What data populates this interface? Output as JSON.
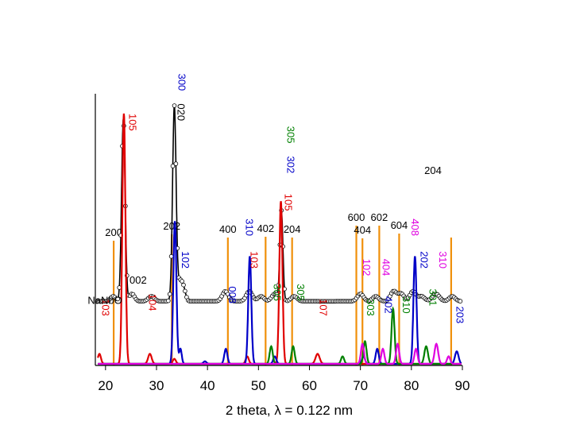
{
  "chart_data": {
    "type": "line",
    "title": "",
    "xlabel": "2 theta, λ = 0.122 nm",
    "ylabel": "",
    "xlim": [
      18,
      90
    ],
    "ylim": [
      0,
      100
    ],
    "x_ticks": [
      20,
      30,
      40,
      50,
      60,
      70,
      80,
      90
    ],
    "x_tick_labels": [
      "20",
      "30",
      "40",
      "50",
      "60",
      "70",
      "80",
      "90"
    ],
    "legend": "none",
    "grid": false,
    "colors": {
      "experimental": "#000000",
      "red": "#e00000",
      "blue": "#0000c8",
      "green": "#008000",
      "magenta": "#e000e0",
      "orange": "#f0900a"
    },
    "series": [
      {
        "name": "experimental",
        "color": "#000000",
        "marker": "open-circle",
        "baseline": 25,
        "peaks": [
          {
            "x": 23.5,
            "h": 73,
            "w": 0.35
          },
          {
            "x": 33.5,
            "h": 78,
            "w": 0.35
          },
          {
            "x": 34.6,
            "h": 7,
            "w": 0.4
          },
          {
            "x": 35.3,
            "h": 5,
            "w": 0.4
          },
          {
            "x": 21.5,
            "h": 2,
            "w": 0.5
          },
          {
            "x": 25.2,
            "h": 3,
            "w": 0.5
          },
          {
            "x": 29.0,
            "h": 2,
            "w": 0.6
          },
          {
            "x": 43.5,
            "h": 4,
            "w": 0.6
          },
          {
            "x": 48.2,
            "h": 4,
            "w": 0.6
          },
          {
            "x": 50.5,
            "h": 2,
            "w": 0.6
          },
          {
            "x": 53.2,
            "h": 3,
            "w": 0.6
          },
          {
            "x": 54.5,
            "h": 36,
            "w": 0.3
          },
          {
            "x": 57.0,
            "h": 2,
            "w": 0.6
          },
          {
            "x": 70.0,
            "h": 3,
            "w": 0.6
          },
          {
            "x": 73.0,
            "h": 2,
            "w": 0.6
          },
          {
            "x": 76.5,
            "h": 4,
            "w": 0.6
          },
          {
            "x": 78.0,
            "h": 3,
            "w": 0.6
          },
          {
            "x": 80.3,
            "h": 4,
            "w": 0.6
          },
          {
            "x": 82.0,
            "h": 2,
            "w": 0.6
          },
          {
            "x": 84.8,
            "h": 3,
            "w": 0.7
          },
          {
            "x": 88.0,
            "h": 2,
            "w": 0.6
          }
        ]
      },
      {
        "name": "red",
        "color": "#e00000",
        "baseline": 0,
        "peaks": [
          {
            "x": 18.8,
            "h": 4,
            "w": 0.3
          },
          {
            "x": 23.6,
            "h": 100,
            "w": 0.3
          },
          {
            "x": 28.7,
            "h": 4,
            "w": 0.35
          },
          {
            "x": 33.5,
            "h": 2,
            "w": 0.3
          },
          {
            "x": 47.8,
            "h": 3,
            "w": 0.3
          },
          {
            "x": 54.4,
            "h": 65,
            "w": 0.3
          },
          {
            "x": 61.6,
            "h": 4,
            "w": 0.4
          }
        ]
      },
      {
        "name": "blue",
        "color": "#0000c8",
        "baseline": 0,
        "peaks": [
          {
            "x": 33.6,
            "h": 57,
            "w": 0.3
          },
          {
            "x": 34.7,
            "h": 6,
            "w": 0.25
          },
          {
            "x": 39.5,
            "h": 1,
            "w": 0.3
          },
          {
            "x": 43.6,
            "h": 6,
            "w": 0.3
          },
          {
            "x": 48.3,
            "h": 43,
            "w": 0.3
          },
          {
            "x": 53.2,
            "h": 3,
            "w": 0.3
          },
          {
            "x": 70.6,
            "h": 3,
            "w": 0.3
          },
          {
            "x": 73.3,
            "h": 6,
            "w": 0.3
          },
          {
            "x": 80.7,
            "h": 43,
            "w": 0.3
          },
          {
            "x": 88.9,
            "h": 5,
            "w": 0.35
          }
        ]
      },
      {
        "name": "green",
        "color": "#008000",
        "baseline": 0,
        "peaks": [
          {
            "x": 52.5,
            "h": 7,
            "w": 0.3
          },
          {
            "x": 56.8,
            "h": 7,
            "w": 0.3
          },
          {
            "x": 66.5,
            "h": 3,
            "w": 0.3
          },
          {
            "x": 70.9,
            "h": 9,
            "w": 0.3
          },
          {
            "x": 76.4,
            "h": 22,
            "w": 0.3
          },
          {
            "x": 82.9,
            "h": 7,
            "w": 0.35
          }
        ]
      },
      {
        "name": "magenta",
        "color": "#e000e0",
        "baseline": 0,
        "peaks": [
          {
            "x": 70.4,
            "h": 8,
            "w": 0.3
          },
          {
            "x": 74.4,
            "h": 6,
            "w": 0.3
          },
          {
            "x": 77.3,
            "h": 8,
            "w": 0.3
          },
          {
            "x": 80.9,
            "h": 6,
            "w": 0.3
          },
          {
            "x": 84.9,
            "h": 8,
            "w": 0.35
          },
          {
            "x": 87.3,
            "h": 3,
            "w": 0.3
          }
        ]
      }
    ],
    "reference_lines": {
      "color": "#f0900a",
      "lines": [
        {
          "x": 21.6,
          "label": "200"
        },
        {
          "x": 33.0,
          "label": "202"
        },
        {
          "x": 44.0,
          "label": "400"
        },
        {
          "x": 51.4,
          "label": "402"
        },
        {
          "x": 56.6,
          "label": "204"
        },
        {
          "x": 69.2,
          "label": "600"
        },
        {
          "x": 70.4,
          "label": "404"
        },
        {
          "x": 73.7,
          "label": "602"
        },
        {
          "x": 77.6,
          "label": "604"
        },
        {
          "x": 87.8,
          "label": "204"
        }
      ]
    },
    "annotations": [
      {
        "text": "002",
        "x": 24.7,
        "y": 32,
        "color": "#000000",
        "rotate": 0
      },
      {
        "text": "300",
        "x": 34.3,
        "y": 116,
        "color": "#0000c8",
        "rotate": 90
      },
      {
        "text": "020",
        "x": 34.1,
        "y": 104,
        "color": "#000000",
        "rotate": 90
      },
      {
        "text": "105",
        "x": 24.6,
        "y": 100,
        "color": "#e00000",
        "rotate": 90
      },
      {
        "text": "305",
        "x": 55.6,
        "y": 95,
        "color": "#008000",
        "rotate": 90
      },
      {
        "text": "302",
        "x": 55.6,
        "y": 83,
        "color": "#0000c8",
        "rotate": 90
      },
      {
        "text": "105",
        "x": 55.2,
        "y": 68,
        "color": "#e00000",
        "rotate": 90
      },
      {
        "text": "310",
        "x": 47.5,
        "y": 58,
        "color": "#0000c8",
        "rotate": 90
      },
      {
        "text": "103",
        "x": 48.5,
        "y": 45,
        "color": "#e00000",
        "rotate": 90
      },
      {
        "text": "102",
        "x": 35.0,
        "y": 45,
        "color": "#0000c8",
        "rotate": 90
      },
      {
        "text": "104",
        "x": 28.5,
        "y": 28,
        "color": "#e00000",
        "rotate": 90
      },
      {
        "text": "103",
        "x": 19.3,
        "y": 26,
        "color": "#e00000",
        "rotate": 90
      },
      {
        "text": "008",
        "x": 44.2,
        "y": 31,
        "color": "#0000c8",
        "rotate": 90
      },
      {
        "text": "305",
        "x": 53.0,
        "y": 32,
        "color": "#008000",
        "rotate": 90
      },
      {
        "text": "305",
        "x": 57.6,
        "y": 32,
        "color": "#008000",
        "rotate": 90
      },
      {
        "text": "107",
        "x": 62.0,
        "y": 26,
        "color": "#e00000",
        "rotate": 90
      },
      {
        "text": "408",
        "x": 80.0,
        "y": 58,
        "color": "#e000e0",
        "rotate": 90
      },
      {
        "text": "102",
        "x": 70.5,
        "y": 42,
        "color": "#e000e0",
        "rotate": 90
      },
      {
        "text": "404",
        "x": 74.3,
        "y": 42,
        "color": "#e000e0",
        "rotate": 90
      },
      {
        "text": "202",
        "x": 81.8,
        "y": 45,
        "color": "#0000c8",
        "rotate": 90
      },
      {
        "text": "310",
        "x": 85.5,
        "y": 45,
        "color": "#e000e0",
        "rotate": 90
      },
      {
        "text": "303",
        "x": 71.3,
        "y": 26,
        "color": "#008000",
        "rotate": 90
      },
      {
        "text": "402",
        "x": 74.8,
        "y": 27,
        "color": "#0000c8",
        "rotate": 90
      },
      {
        "text": "310",
        "x": 78.3,
        "y": 27,
        "color": "#008000",
        "rotate": 90
      },
      {
        "text": "301",
        "x": 83.5,
        "y": 30,
        "color": "#008000",
        "rotate": 90
      },
      {
        "text": "203",
        "x": 88.8,
        "y": 23,
        "color": "#0000c8",
        "rotate": 90
      },
      {
        "text": "NaNbO",
        "x": 16.5,
        "y": 24,
        "color": "#000000",
        "rotate": 0
      }
    ]
  }
}
